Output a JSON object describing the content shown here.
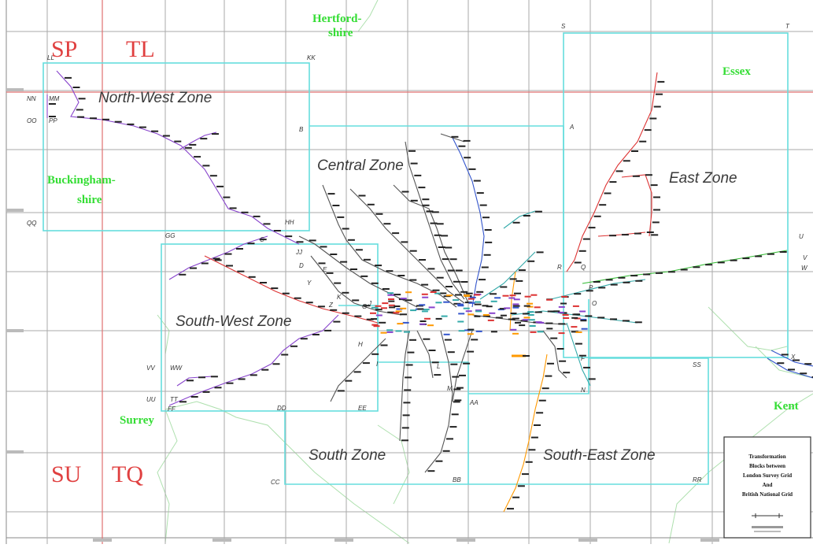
{
  "zones": [
    "North-West Zone",
    "Central Zone",
    "East Zone",
    "South-West Zone",
    "South Zone",
    "South-East Zone"
  ],
  "grid_squares": [
    "SP",
    "TL",
    "SU",
    "TQ"
  ],
  "counties": [
    "Hertford-",
    "shire",
    "Essex",
    "Buckingham-",
    "shire",
    "Surrey",
    "Kent"
  ],
  "block_labels": [
    "LL",
    "KK",
    "S",
    "T",
    "MM",
    "NN",
    "OO",
    "PP",
    "B",
    "A",
    "QQ",
    "GG",
    "JJ",
    "HH",
    "D",
    "E",
    "C",
    "R",
    "Q",
    "U",
    "V",
    "W",
    "K",
    "G",
    "H",
    "VV",
    "WW",
    "UU",
    "TT",
    "FF",
    "DD",
    "EE",
    "L",
    "M",
    "AA",
    "BB",
    "F",
    "N",
    "SS",
    "CC",
    "RR",
    "X",
    "Y",
    "I",
    "J",
    "P",
    "O",
    "Z"
  ],
  "legend": {
    "lines": [
      "Transformation",
      "Blocks between",
      "London Survey Grid",
      "And",
      "British National Grid"
    ],
    "colors": {
      "border": "#333333"
    }
  },
  "colors": {
    "zone_border": "#66dddd",
    "grid_red": "#e04040",
    "grid_grey": "#8a8a8a",
    "county_green": "#33dd33",
    "county_boundary": "#99dd99",
    "rail_purple": "#8844cc",
    "rail_red": "#dd3333",
    "rail_blue": "#3355cc",
    "rail_green": "#33bb33",
    "rail_orange": "#ff9900",
    "rail_teal": "#33aaaa",
    "rail_dark": "#333333"
  }
}
